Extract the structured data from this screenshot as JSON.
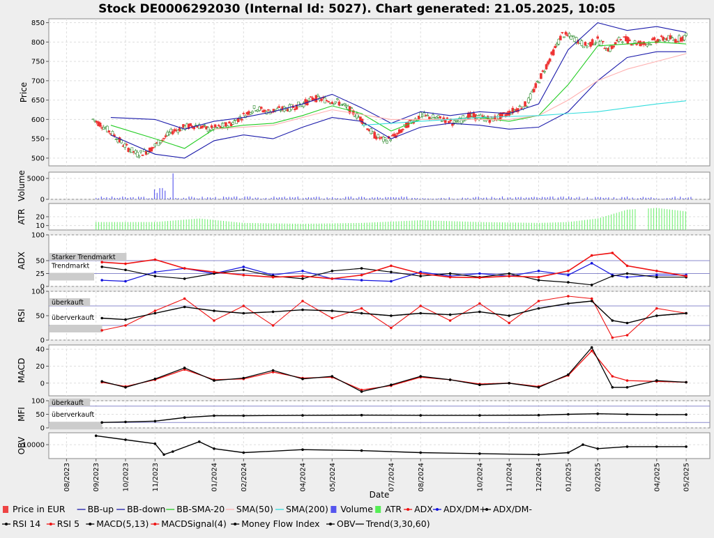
{
  "title": "Stock DE0006292030 (Internal Id: 5027). Chart generated: 21.05.2025, 10:05",
  "xlabel": "Date",
  "x_ticks": [
    "08/2023",
    "09/2023",
    "10/2023",
    "11/2023",
    "01/2024",
    "02/2024",
    "04/2024",
    "05/2024",
    "07/2024",
    "08/2024",
    "10/2024",
    "11/2024",
    "12/2024",
    "01/2025",
    "02/2025",
    "04/2025",
    "05/2025"
  ],
  "colors": {
    "price_up": "#2e8b2e",
    "price_down": "#ee3333",
    "bb": "#1a1aaa",
    "bb_sma": "#22cc22",
    "sma50": "#ffb0b0",
    "sma200": "#33dddd",
    "volume": "#6060ee",
    "atr": "#66ee66",
    "red": "#ee1111",
    "blue": "#1111dd",
    "black": "#000000",
    "zone": "#8888cc"
  },
  "panels": {
    "price": {
      "ylabel": "Price",
      "ticks": [
        "850",
        "800",
        "750",
        "700",
        "650",
        "600",
        "550",
        "500"
      ]
    },
    "volume": {
      "ylabel": "Volume",
      "ticks": [
        "5000",
        "0"
      ]
    },
    "atr": {
      "ylabel": "ATR",
      "ticks": [
        "20",
        "10"
      ]
    },
    "adx": {
      "ylabel": "ADX",
      "ticks": [
        "100",
        "50",
        "25",
        "0"
      ],
      "zones": [
        "Starker Trendmarkt",
        "Trendmarkt"
      ]
    },
    "rsi": {
      "ylabel": "RSI",
      "ticks": [
        "100",
        "50",
        "0"
      ],
      "zones": [
        "überkauft",
        "überverkauft"
      ]
    },
    "macd": {
      "ylabel": "MACD",
      "ticks": [
        "40",
        "20",
        "0"
      ]
    },
    "mfi": {
      "ylabel": "MFI",
      "ticks": [
        "100",
        "50",
        "0"
      ],
      "zones": [
        "überkauft",
        "überverkauft"
      ]
    },
    "obv": {
      "ylabel": "OBV",
      "ticks": [
        "-10000"
      ]
    }
  },
  "legend": [
    {
      "label": "Price in EUR",
      "swatch": "rect",
      "color": "#ee4444"
    },
    {
      "label": "BB-up",
      "swatch": "line",
      "color": "#1a1aaa"
    },
    {
      "label": "BB-down",
      "swatch": "line",
      "color": "#1a1aaa"
    },
    {
      "label": "BB-SMA-20",
      "swatch": "line",
      "color": "#22cc22"
    },
    {
      "label": "SMA(50)",
      "swatch": "line",
      "color": "#ffb0b0"
    },
    {
      "label": "SMA(200)",
      "swatch": "line",
      "color": "#33dddd"
    },
    {
      "label": "Volume",
      "swatch": "rect",
      "color": "#5555ee"
    },
    {
      "label": "ATR",
      "swatch": "rect",
      "color": "#55ee55"
    },
    {
      "label": "ADX",
      "swatch": "dotline",
      "color": "#ee1111"
    },
    {
      "label": "ADX/DM+",
      "swatch": "dotline",
      "color": "#1111dd"
    },
    {
      "label": "ADX/DM-",
      "swatch": "dotline",
      "color": "#000000"
    },
    {
      "label": "RSI 14",
      "swatch": "dotline",
      "color": "#000000"
    },
    {
      "label": "RSI 5",
      "swatch": "dotline",
      "color": "#ee1111"
    },
    {
      "label": "MACD(5,13)",
      "swatch": "dotline",
      "color": "#000000"
    },
    {
      "label": "MACDSignal(4)",
      "swatch": "dotline",
      "color": "#ee1111"
    },
    {
      "label": "Money Flow Index",
      "swatch": "dotline",
      "color": "#000000"
    },
    {
      "label": "OBV",
      "swatch": "dotline",
      "color": "#000000"
    },
    {
      "label": "Trend(3,30,60)",
      "swatch": "line",
      "color": "#000000"
    }
  ],
  "chart_data": {
    "type": "line",
    "x_unit": "month index (0 = 08/2023)",
    "price_range": [
      480,
      860
    ],
    "series": [
      {
        "name": "Price in EUR",
        "x": [
          0.9,
          1.2,
          1.6,
          2.0,
          2.4,
          2.8,
          3.2,
          3.6,
          4.0,
          4.4,
          4.8,
          5.2,
          5.6,
          6.0,
          6.4,
          6.8,
          7.2,
          7.6,
          8.0,
          8.4,
          8.8,
          9.2,
          9.6,
          10.0,
          10.4,
          10.8,
          11.2,
          11.6,
          12.0,
          12.4,
          12.8,
          13.2,
          13.6,
          14.0,
          14.4,
          14.8,
          15.2,
          15.6,
          16.0,
          16.4,
          16.8,
          17.2,
          17.6,
          18.0,
          18.4,
          18.8,
          19.2,
          19.6,
          20.0,
          20.4,
          20.6,
          21.0
        ],
        "y": [
          600,
          585,
          560,
          530,
          510,
          520,
          545,
          570,
          580,
          585,
          575,
          580,
          590,
          610,
          630,
          620,
          625,
          630,
          640,
          655,
          650,
          645,
          625,
          600,
          560,
          545,
          560,
          590,
          610,
          605,
          600,
          590,
          610,
          605,
          600,
          610,
          625,
          640,
          700,
          760,
          820,
          810,
          790,
          805,
          780,
          810,
          800,
          795,
          805,
          810,
          805,
          815
        ]
      },
      {
        "name": "BB-up",
        "x": [
          1.5,
          3.0,
          4.0,
          5.0,
          6.0,
          7.0,
          8.0,
          9.0,
          10.0,
          11.0,
          12.0,
          13.0,
          14.0,
          15.0,
          16.0,
          17.0,
          18.0,
          19.0,
          20.0,
          21.0
        ],
        "y": [
          605,
          600,
          575,
          595,
          605,
          620,
          640,
          665,
          630,
          590,
          620,
          610,
          620,
          615,
          640,
          780,
          850,
          830,
          840,
          825
        ]
      },
      {
        "name": "BB-down",
        "x": [
          1.5,
          3.0,
          4.0,
          5.0,
          6.0,
          7.0,
          8.0,
          9.0,
          10.0,
          11.0,
          12.0,
          13.0,
          14.0,
          15.0,
          16.0,
          17.0,
          18.0,
          19.0,
          20.0,
          21.0
        ],
        "y": [
          560,
          510,
          500,
          545,
          560,
          550,
          580,
          605,
          595,
          550,
          580,
          590,
          585,
          575,
          580,
          620,
          700,
          760,
          775,
          775
        ]
      },
      {
        "name": "BB-SMA-20",
        "x": [
          1.5,
          3.0,
          4.0,
          5.0,
          6.0,
          7.0,
          8.0,
          9.0,
          10.0,
          11.0,
          12.0,
          13.0,
          14.0,
          15.0,
          16.0,
          17.0,
          18.0,
          19.0,
          20.0,
          21.0
        ],
        "y": [
          585,
          550,
          525,
          575,
          585,
          590,
          610,
          635,
          615,
          570,
          600,
          600,
          605,
          595,
          610,
          690,
          790,
          795,
          800,
          795
        ]
      },
      {
        "name": "SMA(50)",
        "x": [
          5.0,
          7.0,
          9.0,
          11.0,
          13.0,
          15.0,
          16.0,
          17.0,
          18.0,
          19.0,
          20.0,
          21.0
        ],
        "y": [
          575,
          585,
          625,
          600,
          600,
          600,
          610,
          650,
          700,
          730,
          750,
          770
        ]
      },
      {
        "name": "SMA(200)",
        "x": [
          10.0,
          12.0,
          14.0,
          16.0,
          17.0,
          18.0,
          19.0,
          20.0,
          21.0
        ],
        "y": [
          585,
          595,
          605,
          610,
          615,
          620,
          630,
          640,
          648
        ]
      },
      {
        "name": "ATR",
        "x": [
          1.0,
          3.0,
          4.5,
          6.0,
          8.0,
          10.0,
          12.0,
          14.0,
          16.0,
          17.0,
          18.0,
          19.0,
          20.0,
          21.0
        ],
        "y": [
          14,
          14,
          18,
          13,
          12,
          13,
          16,
          14,
          13,
          14,
          18,
          28,
          30,
          26
        ]
      },
      {
        "name": "ADX",
        "x": [
          1.2,
          2.0,
          3.0,
          4.0,
          5.0,
          6.0,
          7.0,
          8.0,
          9.0,
          10.0,
          11.0,
          12.0,
          13.0,
          14.0,
          15.0,
          16.0,
          17.0,
          17.8,
          18.5,
          19.0,
          20.0,
          21.0
        ],
        "y": [
          47,
          44,
          52,
          35,
          28,
          22,
          18,
          20,
          15,
          22,
          40,
          25,
          18,
          17,
          20,
          18,
          30,
          60,
          65,
          40,
          30,
          20
        ]
      },
      {
        "name": "ADX/DM+",
        "x": [
          1.2,
          2.0,
          3.0,
          4.0,
          5.0,
          6.0,
          7.0,
          8.0,
          9.0,
          10.0,
          11.0,
          12.0,
          13.0,
          14.0,
          15.0,
          16.0,
          17.0,
          17.8,
          18.5,
          19.0,
          20.0,
          21.0
        ],
        "y": [
          12,
          10,
          28,
          35,
          25,
          38,
          22,
          30,
          15,
          12,
          10,
          28,
          20,
          25,
          20,
          30,
          22,
          45,
          22,
          18,
          22,
          22
        ]
      },
      {
        "name": "ADX/DM-",
        "x": [
          1.2,
          2.0,
          3.0,
          4.0,
          5.0,
          6.0,
          7.0,
          8.0,
          9.0,
          10.0,
          11.0,
          12.0,
          13.0,
          14.0,
          15.0,
          16.0,
          17.0,
          17.8,
          18.5,
          19.0,
          20.0,
          21.0
        ],
        "y": [
          38,
          32,
          20,
          15,
          25,
          32,
          20,
          15,
          30,
          35,
          28,
          20,
          25,
          18,
          25,
          12,
          8,
          3,
          20,
          25,
          18,
          18
        ]
      },
      {
        "name": "RSI 14",
        "x": [
          1.2,
          2.0,
          3.0,
          4.0,
          5.0,
          6.0,
          7.0,
          8.0,
          9.0,
          10.0,
          11.0,
          12.0,
          13.0,
          14.0,
          15.0,
          16.0,
          17.0,
          17.8,
          18.5,
          19.0,
          20.0,
          21.0
        ],
        "y": [
          45,
          42,
          55,
          68,
          60,
          55,
          58,
          62,
          60,
          55,
          50,
          55,
          52,
          58,
          50,
          65,
          75,
          80,
          40,
          35,
          50,
          55
        ]
      },
      {
        "name": "RSI 5",
        "x": [
          1.2,
          2.0,
          3.0,
          4.0,
          5.0,
          6.0,
          7.0,
          8.0,
          9.0,
          10.0,
          11.0,
          12.0,
          13.0,
          14.0,
          15.0,
          16.0,
          17.0,
          17.8,
          18.5,
          19.0,
          20.0,
          21.0
        ],
        "y": [
          20,
          30,
          60,
          85,
          40,
          70,
          30,
          80,
          45,
          65,
          25,
          70,
          40,
          75,
          35,
          80,
          90,
          85,
          5,
          10,
          65,
          55
        ]
      },
      {
        "name": "MACD(5,13)",
        "x": [
          1.2,
          2.0,
          3.0,
          4.0,
          5.0,
          6.0,
          7.0,
          8.0,
          9.0,
          10.0,
          11.0,
          12.0,
          13.0,
          14.0,
          15.0,
          16.0,
          17.0,
          17.8,
          18.5,
          19.0,
          20.0,
          21.0
        ],
        "y": [
          2,
          -5,
          5,
          18,
          3,
          6,
          15,
          5,
          8,
          -10,
          -2,
          8,
          4,
          -2,
          0,
          -5,
          10,
          42,
          -5,
          -5,
          3,
          1
        ]
      },
      {
        "name": "MACDSignal(4)",
        "x": [
          1.2,
          2.0,
          3.0,
          4.0,
          5.0,
          6.0,
          7.0,
          8.0,
          9.0,
          10.0,
          11.0,
          12.0,
          13.0,
          14.0,
          15.0,
          16.0,
          17.0,
          17.8,
          18.5,
          19.0,
          20.0,
          21.0
        ],
        "y": [
          1,
          -4,
          4,
          16,
          4,
          5,
          13,
          6,
          7,
          -8,
          -3,
          7,
          4,
          -1,
          0,
          -4,
          9,
          38,
          8,
          3,
          2,
          1
        ]
      },
      {
        "name": "Money Flow Index",
        "x": [
          1.2,
          2.0,
          3.0,
          4.0,
          5.0,
          6.0,
          8.0,
          10.0,
          12.0,
          14.0,
          16.0,
          17.0,
          18.0,
          19.0,
          20.0,
          21.0
        ],
        "y": [
          20,
          22,
          25,
          38,
          45,
          45,
          46,
          47,
          46,
          46,
          47,
          50,
          52,
          50,
          49,
          49
        ]
      },
      {
        "name": "OBV",
        "x": [
          1.0,
          2.0,
          3.0,
          3.3,
          3.6,
          4.5,
          5.0,
          6.0,
          8.0,
          10.0,
          12.0,
          14.0,
          16.0,
          17.0,
          17.5,
          18.0,
          19.0,
          20.0,
          21.0
        ],
        "y": [
          -5500,
          -7500,
          -9500,
          -15000,
          -13500,
          -8500,
          -12000,
          -14000,
          -12500,
          -13000,
          -14000,
          -14500,
          -15000,
          -14000,
          -10000,
          -12000,
          -11000,
          -11000,
          -11000
        ]
      }
    ]
  }
}
